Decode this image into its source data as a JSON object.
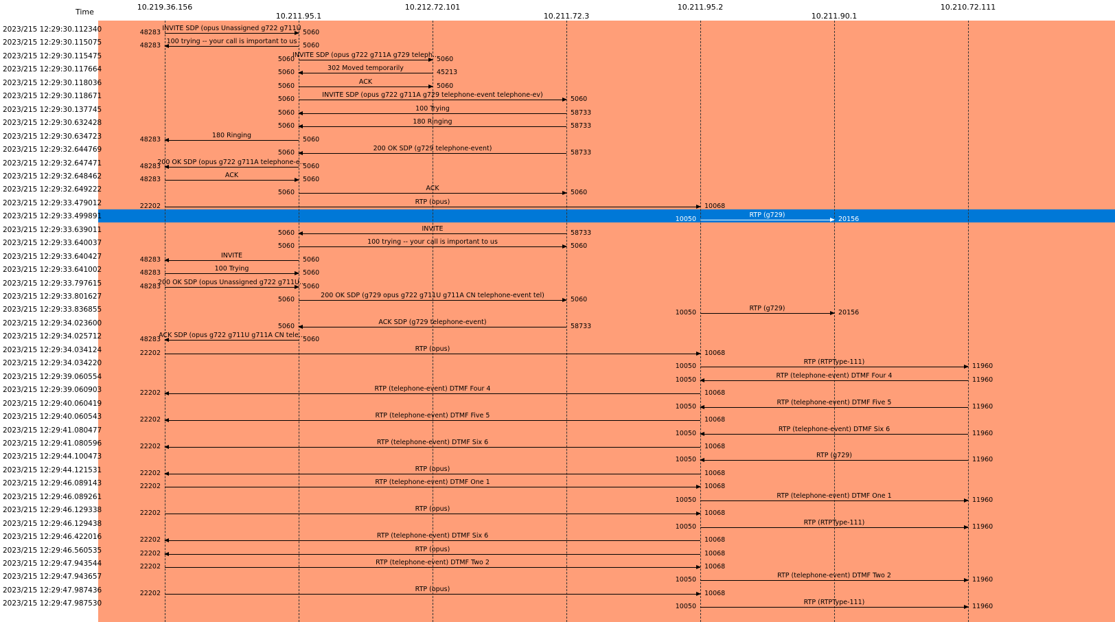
{
  "time_header": "Time",
  "hosts": [
    "10.219.36.156",
    "10.211.95.1",
    "10.212.72.101",
    "10.211.72.3",
    "10.211.95.2",
    "10.211.90.1",
    "10.210.72.111"
  ],
  "colors": {
    "flow_background": "#ff9e78",
    "selected_row": "#0078d7"
  },
  "selected_row_index": 14,
  "rows": [
    {
      "time": "2023/215 12:29:30.112340",
      "from": 0,
      "to": 1,
      "label": "INVITE SDP (opus Unassigned g722 g711U",
      "src_port": "48283",
      "dst_port": "5060"
    },
    {
      "time": "2023/215 12:29:30.115075",
      "from": 1,
      "to": 0,
      "label": "100 trying -- your call is important to us",
      "src_port": "5060",
      "dst_port": "48283"
    },
    {
      "time": "2023/215 12:29:30.115475",
      "from": 1,
      "to": 2,
      "label": "INVITE SDP (opus g722 g711A g729 teleph...",
      "src_port": "5060",
      "dst_port": "5060"
    },
    {
      "time": "2023/215 12:29:30.117664",
      "from": 2,
      "to": 1,
      "label": "302 Moved temporarily",
      "src_port": "45213",
      "dst_port": "5060"
    },
    {
      "time": "2023/215 12:29:30.118036",
      "from": 1,
      "to": 2,
      "label": "ACK",
      "src_port": "5060",
      "dst_port": "5060"
    },
    {
      "time": "2023/215 12:29:30.118671",
      "from": 1,
      "to": 3,
      "label": "INVITE SDP (opus g722 g711A g729 telephone-event telephone-ev)",
      "src_port": "5060",
      "dst_port": "5060"
    },
    {
      "time": "2023/215 12:29:30.137745",
      "from": 3,
      "to": 1,
      "label": "100 Trying",
      "src_port": "58733",
      "dst_port": "5060"
    },
    {
      "time": "2023/215 12:29:30.632428",
      "from": 3,
      "to": 1,
      "label": "180 Ringing",
      "src_port": "58733",
      "dst_port": "5060"
    },
    {
      "time": "2023/215 12:29:30.634723",
      "from": 1,
      "to": 0,
      "label": "180 Ringing",
      "src_port": "5060",
      "dst_port": "48283"
    },
    {
      "time": "2023/215 12:29:32.644769",
      "from": 3,
      "to": 1,
      "label": "200 OK SDP (g729 telephone-event)",
      "src_port": "58733",
      "dst_port": "5060"
    },
    {
      "time": "2023/215 12:29:32.647471",
      "from": 1,
      "to": 0,
      "label": "200 OK SDP (opus g722 g711A telephone-e...",
      "src_port": "5060",
      "dst_port": "48283"
    },
    {
      "time": "2023/215 12:29:32.648462",
      "from": 0,
      "to": 1,
      "label": "ACK",
      "src_port": "48283",
      "dst_port": "5060"
    },
    {
      "time": "2023/215 12:29:32.649222",
      "from": 1,
      "to": 3,
      "label": "ACK",
      "src_port": "5060",
      "dst_port": "5060"
    },
    {
      "time": "2023/215 12:29:33.479012",
      "from": 0,
      "to": 4,
      "label": "RTP (opus)",
      "src_port": "22202",
      "dst_port": "10068"
    },
    {
      "time": "2023/215 12:29:33.499891",
      "from": 4,
      "to": 5,
      "label": "RTP (g729)",
      "src_port": "10050",
      "dst_port": "20156"
    },
    {
      "time": "2023/215 12:29:33.639011",
      "from": 3,
      "to": 1,
      "label": "INVITE",
      "src_port": "58733",
      "dst_port": "5060"
    },
    {
      "time": "2023/215 12:29:33.640037",
      "from": 1,
      "to": 3,
      "label": "100 trying -- your call is important to us",
      "src_port": "5060",
      "dst_port": "5060"
    },
    {
      "time": "2023/215 12:29:33.640427",
      "from": 1,
      "to": 0,
      "label": "INVITE",
      "src_port": "5060",
      "dst_port": "48283"
    },
    {
      "time": "2023/215 12:29:33.641002",
      "from": 0,
      "to": 1,
      "label": "100 Trying",
      "src_port": "48283",
      "dst_port": "5060"
    },
    {
      "time": "2023/215 12:29:33.797615",
      "from": 0,
      "to": 1,
      "label": "200 OK SDP (opus Unassigned g722 g711U...",
      "src_port": "48283",
      "dst_port": "5060"
    },
    {
      "time": "2023/215 12:29:33.801627",
      "from": 1,
      "to": 3,
      "label": "200 OK SDP (g729 opus g722 g711U g711A CN telephone-event tel)",
      "src_port": "5060",
      "dst_port": "5060"
    },
    {
      "time": "2023/215 12:29:33.836855",
      "from": 4,
      "to": 5,
      "label": "RTP (g729)",
      "src_port": "10050",
      "dst_port": "20156"
    },
    {
      "time": "2023/215 12:29:34.023600",
      "from": 3,
      "to": 1,
      "label": "ACK SDP (g729 telephone-event)",
      "src_port": "58733",
      "dst_port": "5060"
    },
    {
      "time": "2023/215 12:29:34.025712",
      "from": 1,
      "to": 0,
      "label": "ACK SDP (opus g722 g711U g711A CN tele...",
      "src_port": "5060",
      "dst_port": "48283"
    },
    {
      "time": "2023/215 12:29:34.034124",
      "from": 0,
      "to": 4,
      "label": "RTP (opus)",
      "src_port": "22202",
      "dst_port": "10068"
    },
    {
      "time": "2023/215 12:29:34.034220",
      "from": 4,
      "to": 6,
      "label": "RTP (RTPType-111)",
      "src_port": "10050",
      "dst_port": "11960"
    },
    {
      "time": "2023/215 12:29:39.060554",
      "from": 6,
      "to": 4,
      "label": "RTP (telephone-event) DTMF Four 4",
      "src_port": "11960",
      "dst_port": "10050"
    },
    {
      "time": "2023/215 12:29:39.060903",
      "from": 4,
      "to": 0,
      "label": "RTP (telephone-event) DTMF Four 4",
      "src_port": "10068",
      "dst_port": "22202"
    },
    {
      "time": "2023/215 12:29:40.060419",
      "from": 6,
      "to": 4,
      "label": "RTP (telephone-event) DTMF Five 5",
      "src_port": "11960",
      "dst_port": "10050"
    },
    {
      "time": "2023/215 12:29:40.060543",
      "from": 4,
      "to": 0,
      "label": "RTP (telephone-event) DTMF Five 5",
      "src_port": "10068",
      "dst_port": "22202"
    },
    {
      "time": "2023/215 12:29:41.080477",
      "from": 6,
      "to": 4,
      "label": "RTP (telephone-event) DTMF Six 6",
      "src_port": "11960",
      "dst_port": "10050"
    },
    {
      "time": "2023/215 12:29:41.080596",
      "from": 4,
      "to": 0,
      "label": "RTP (telephone-event) DTMF Six 6",
      "src_port": "10068",
      "dst_port": "22202"
    },
    {
      "time": "2023/215 12:29:44.100473",
      "from": 6,
      "to": 4,
      "label": "RTP (g729)",
      "src_port": "11960",
      "dst_port": "10050"
    },
    {
      "time": "2023/215 12:29:44.121531",
      "from": 4,
      "to": 0,
      "label": "RTP (opus)",
      "src_port": "10068",
      "dst_port": "22202"
    },
    {
      "time": "2023/215 12:29:46.089143",
      "from": 0,
      "to": 4,
      "label": "RTP (telephone-event) DTMF One 1",
      "src_port": "22202",
      "dst_port": "10068"
    },
    {
      "time": "2023/215 12:29:46.089261",
      "from": 4,
      "to": 6,
      "label": "RTP (telephone-event) DTMF One 1",
      "src_port": "10050",
      "dst_port": "11960"
    },
    {
      "time": "2023/215 12:29:46.129338",
      "from": 0,
      "to": 4,
      "label": "RTP (opus)",
      "src_port": "22202",
      "dst_port": "10068"
    },
    {
      "time": "2023/215 12:29:46.129438",
      "from": 4,
      "to": 6,
      "label": "RTP (RTPType-111)",
      "src_port": "10050",
      "dst_port": "11960"
    },
    {
      "time": "2023/215 12:29:46.422016",
      "from": 4,
      "to": 0,
      "label": "RTP (telephone-event) DTMF Six 6",
      "src_port": "10068",
      "dst_port": "22202"
    },
    {
      "time": "2023/215 12:29:46.560535",
      "from": 4,
      "to": 0,
      "label": "RTP (opus)",
      "src_port": "10068",
      "dst_port": "22202"
    },
    {
      "time": "2023/215 12:29:47.943544",
      "from": 0,
      "to": 4,
      "label": "RTP (telephone-event) DTMF Two 2",
      "src_port": "22202",
      "dst_port": "10068"
    },
    {
      "time": "2023/215 12:29:47.943657",
      "from": 4,
      "to": 6,
      "label": "RTP (telephone-event) DTMF Two 2",
      "src_port": "10050",
      "dst_port": "11960"
    },
    {
      "time": "2023/215 12:29:47.987436",
      "from": 0,
      "to": 4,
      "label": "RTP (opus)",
      "src_port": "22202",
      "dst_port": "10068"
    },
    {
      "time": "2023/215 12:29:47.987530",
      "from": 4,
      "to": 6,
      "label": "RTP (RTPType-111)",
      "src_port": "10050",
      "dst_port": "11960"
    }
  ]
}
